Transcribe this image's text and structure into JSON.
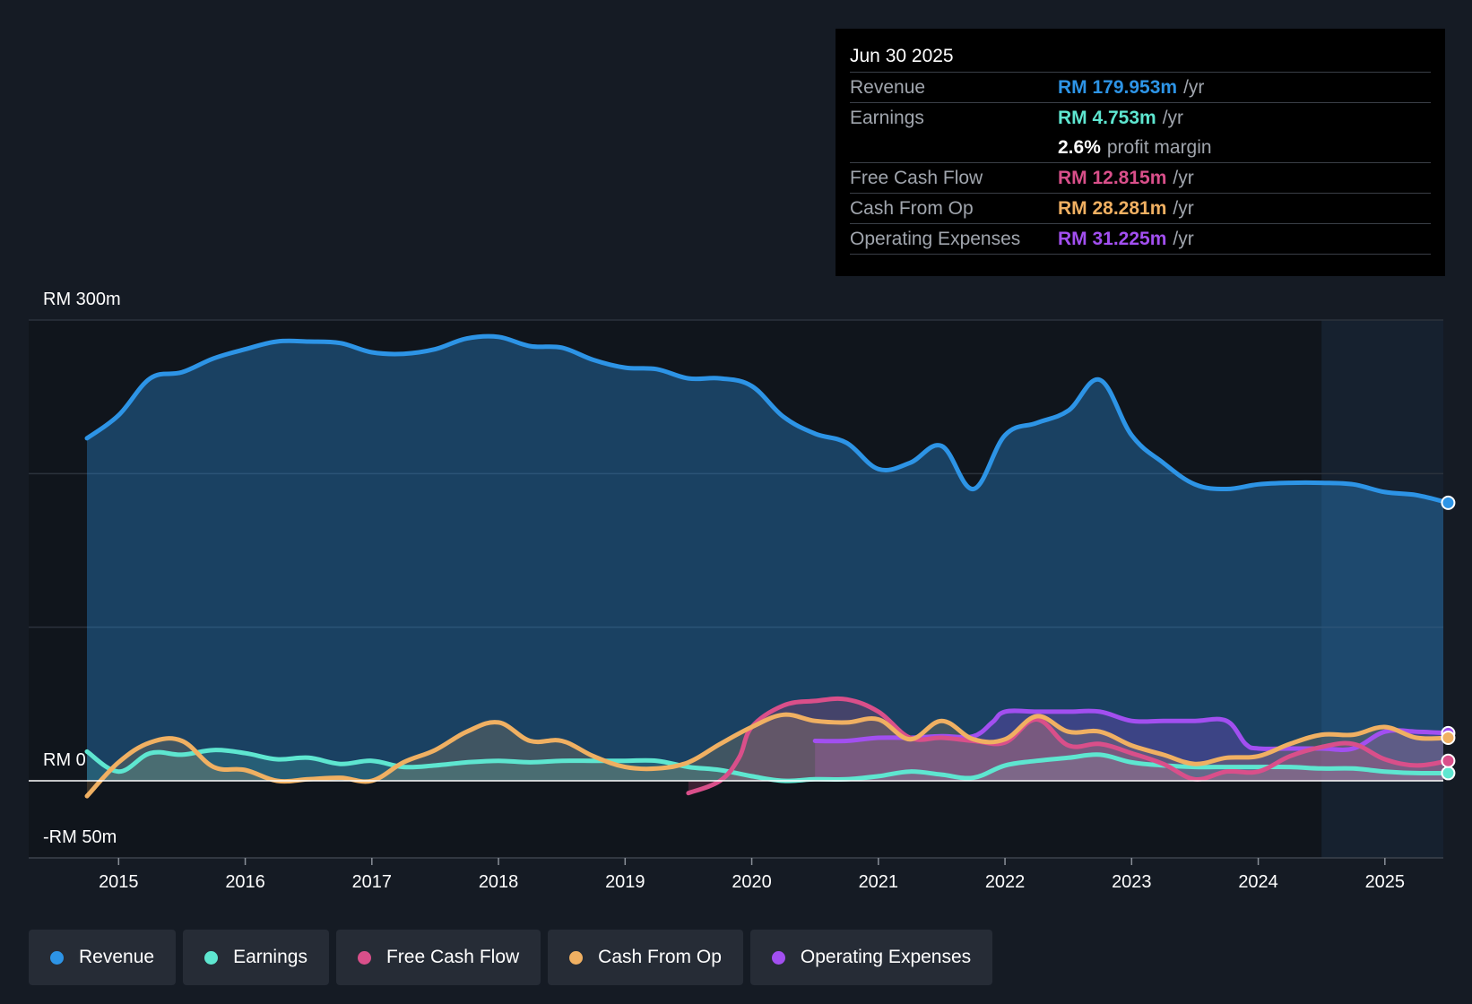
{
  "tooltip": {
    "date": "Jun 30 2025",
    "rows": [
      {
        "label": "Revenue",
        "value": "RM 179.953m",
        "unit": "/yr",
        "color": "#2d94e6"
      },
      {
        "label": "Earnings",
        "value": "RM 4.753m",
        "unit": "/yr",
        "color": "#5ee6d0"
      },
      {
        "label": "",
        "value": "2.6%",
        "unit": "profit margin",
        "color": "#ffffff"
      },
      {
        "label": "Free Cash Flow",
        "value": "RM 12.815m",
        "unit": "/yr",
        "color": "#d94f8a"
      },
      {
        "label": "Cash From Op",
        "value": "RM 28.281m",
        "unit": "/yr",
        "color": "#f0b062"
      },
      {
        "label": "Operating Expenses",
        "value": "RM 31.225m",
        "unit": "/yr",
        "color": "#a24ff0"
      }
    ]
  },
  "legend": [
    {
      "label": "Revenue",
      "color": "#2d94e6"
    },
    {
      "label": "Earnings",
      "color": "#5ee6d0"
    },
    {
      "label": "Free Cash Flow",
      "color": "#d94f8a"
    },
    {
      "label": "Cash From Op",
      "color": "#f0b062"
    },
    {
      "label": "Operating Expenses",
      "color": "#a24ff0"
    }
  ],
  "chart_data": {
    "type": "area",
    "title": "",
    "xlabel": "",
    "ylabel": "",
    "y_axis_labels": [
      "RM 300m",
      "RM 0",
      "-RM 50m"
    ],
    "x_ticks": [
      "2015",
      "2016",
      "2017",
      "2018",
      "2019",
      "2020",
      "2021",
      "2022",
      "2023",
      "2024",
      "2025"
    ],
    "xlim": [
      2014.5,
      2025.5
    ],
    "ylim": [
      -50,
      300
    ],
    "grid": true,
    "forecast_start": 2024.5,
    "series": [
      {
        "name": "Revenue",
        "color": "#2d94e6",
        "fill": true,
        "x": [
          2014.75,
          2015.0,
          2015.25,
          2015.5,
          2015.75,
          2016.0,
          2016.25,
          2016.5,
          2016.75,
          2017.0,
          2017.25,
          2017.5,
          2017.75,
          2018.0,
          2018.25,
          2018.5,
          2018.75,
          2019.0,
          2019.25,
          2019.5,
          2019.75,
          2020.0,
          2020.25,
          2020.5,
          2020.75,
          2021.0,
          2021.25,
          2021.5,
          2021.75,
          2022.0,
          2022.25,
          2022.5,
          2022.75,
          2023.0,
          2023.25,
          2023.5,
          2023.75,
          2024.0,
          2024.25,
          2024.5,
          2024.75,
          2025.0,
          2025.25,
          2025.5
        ],
        "y": [
          223,
          238,
          262,
          266,
          275,
          281,
          286,
          286,
          285,
          279,
          278,
          281,
          288,
          289,
          283,
          282,
          274,
          269,
          268,
          262,
          262,
          257,
          237,
          226,
          220,
          203,
          207,
          218,
          190,
          225,
          233,
          241,
          261,
          225,
          207,
          193,
          190,
          193,
          194,
          194,
          193,
          188,
          186,
          181
        ]
      },
      {
        "name": "Earnings",
        "color": "#5ee6d0",
        "fill": true,
        "x": [
          2014.75,
          2015.0,
          2015.25,
          2015.5,
          2015.75,
          2016.0,
          2016.25,
          2016.5,
          2016.75,
          2017.0,
          2017.25,
          2017.5,
          2017.75,
          2018.0,
          2018.25,
          2018.5,
          2018.75,
          2019.0,
          2019.25,
          2019.5,
          2019.75,
          2020.0,
          2020.25,
          2020.5,
          2020.75,
          2021.0,
          2021.25,
          2021.5,
          2021.75,
          2022.0,
          2022.25,
          2022.5,
          2022.75,
          2023.0,
          2023.25,
          2023.5,
          2023.75,
          2024.0,
          2024.25,
          2024.5,
          2024.75,
          2025.0,
          2025.25,
          2025.5
        ],
        "y": [
          19,
          6,
          18,
          17,
          20,
          18,
          14,
          15,
          11,
          13,
          9,
          10,
          12,
          13,
          12,
          13,
          13,
          13,
          13,
          9,
          7,
          3,
          0,
          1,
          1,
          3,
          6,
          4,
          2,
          10,
          13,
          15,
          17,
          12,
          10,
          9,
          9,
          9,
          9,
          8,
          8,
          6,
          5,
          5
        ]
      },
      {
        "name": "Free Cash Flow",
        "color": "#d94f8a",
        "fill": true,
        "x": [
          2019.5,
          2019.75,
          2019.9,
          2020.0,
          2020.25,
          2020.5,
          2020.75,
          2021.0,
          2021.25,
          2021.5,
          2021.75,
          2022.0,
          2022.25,
          2022.5,
          2022.75,
          2023.0,
          2023.25,
          2023.5,
          2023.75,
          2024.0,
          2024.25,
          2024.5,
          2024.75,
          2025.0,
          2025.25,
          2025.5
        ],
        "y": [
          -8,
          0,
          15,
          35,
          49,
          52,
          53,
          45,
          28,
          28,
          26,
          25,
          40,
          23,
          24,
          18,
          11,
          1,
          6,
          6,
          16,
          22,
          24,
          14,
          10,
          13
        ]
      },
      {
        "name": "Cash From Op",
        "color": "#f0b062",
        "fill": true,
        "x": [
          2014.75,
          2015.0,
          2015.25,
          2015.5,
          2015.75,
          2016.0,
          2016.25,
          2016.5,
          2016.75,
          2017.0,
          2017.25,
          2017.5,
          2017.75,
          2018.0,
          2018.25,
          2018.5,
          2018.75,
          2019.0,
          2019.25,
          2019.5,
          2019.75,
          2020.0,
          2020.25,
          2020.5,
          2020.75,
          2021.0,
          2021.25,
          2021.5,
          2021.75,
          2022.0,
          2022.25,
          2022.5,
          2022.75,
          2023.0,
          2023.25,
          2023.5,
          2023.75,
          2024.0,
          2024.25,
          2024.5,
          2024.75,
          2025.0,
          2025.25,
          2025.5
        ],
        "y": [
          -10,
          12,
          25,
          26,
          9,
          7,
          0,
          1,
          2,
          0,
          12,
          20,
          32,
          38,
          26,
          26,
          16,
          9,
          8,
          12,
          24,
          35,
          43,
          39,
          38,
          40,
          27,
          39,
          27,
          27,
          42,
          32,
          32,
          23,
          17,
          11,
          15,
          16,
          24,
          30,
          30,
          35,
          28,
          28
        ]
      },
      {
        "name": "Operating Expenses",
        "color": "#a24ff0",
        "fill": true,
        "x": [
          2020.5,
          2020.75,
          2021.0,
          2021.25,
          2021.5,
          2021.75,
          2021.9,
          2022.0,
          2022.25,
          2022.5,
          2022.75,
          2023.0,
          2023.25,
          2023.5,
          2023.75,
          2023.9,
          2024.0,
          2024.25,
          2024.5,
          2024.75,
          2025.0,
          2025.25,
          2025.5
        ],
        "y": [
          26,
          26,
          28,
          28,
          29,
          29,
          38,
          45,
          45,
          45,
          45,
          39,
          39,
          39,
          39,
          24,
          21,
          21,
          21,
          21,
          32,
          32,
          31
        ]
      }
    ]
  }
}
